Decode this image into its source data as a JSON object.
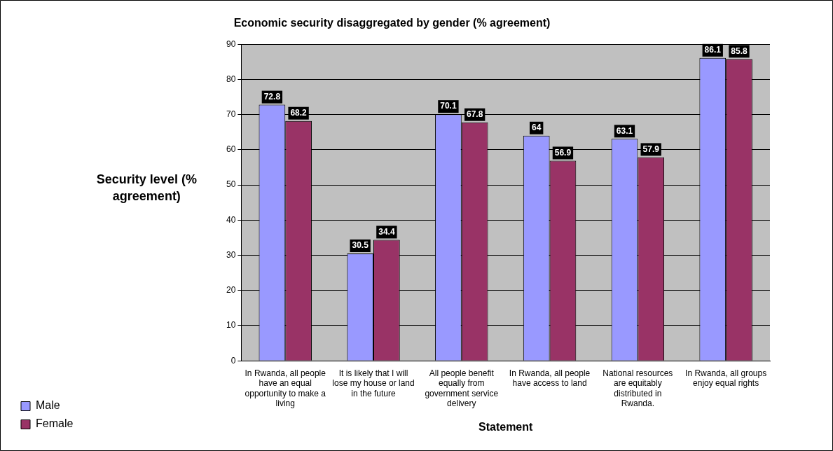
{
  "chart_data": {
    "type": "bar",
    "title": "Economic security disaggregated by gender (% agreement)",
    "xlabel": "Statement",
    "ylabel": "Security level (% agreement)",
    "categories": [
      "In Rwanda, all people have an equal opportunity to make a living",
      "It is likely that I will lose my house or land in the future",
      "All people benefit equally from government service delivery",
      "In Rwanda, all people have access to land",
      "National resources are equitably distributed in Rwanda.",
      "In Rwanda, all groups enjoy equal rights"
    ],
    "series": [
      {
        "name": "Male",
        "color": "#9999ff",
        "values": [
          72.8,
          30.5,
          70.1,
          64,
          63.1,
          86.1
        ]
      },
      {
        "name": "Female",
        "color": "#993366",
        "values": [
          68.2,
          34.4,
          67.8,
          56.9,
          57.9,
          85.8
        ]
      }
    ],
    "ylim": [
      0,
      90
    ],
    "yticks": [
      0,
      10,
      20,
      30,
      40,
      50,
      60,
      70,
      80,
      90
    ],
    "grid": "y",
    "legend": "bottom left",
    "data_labels": true
  }
}
